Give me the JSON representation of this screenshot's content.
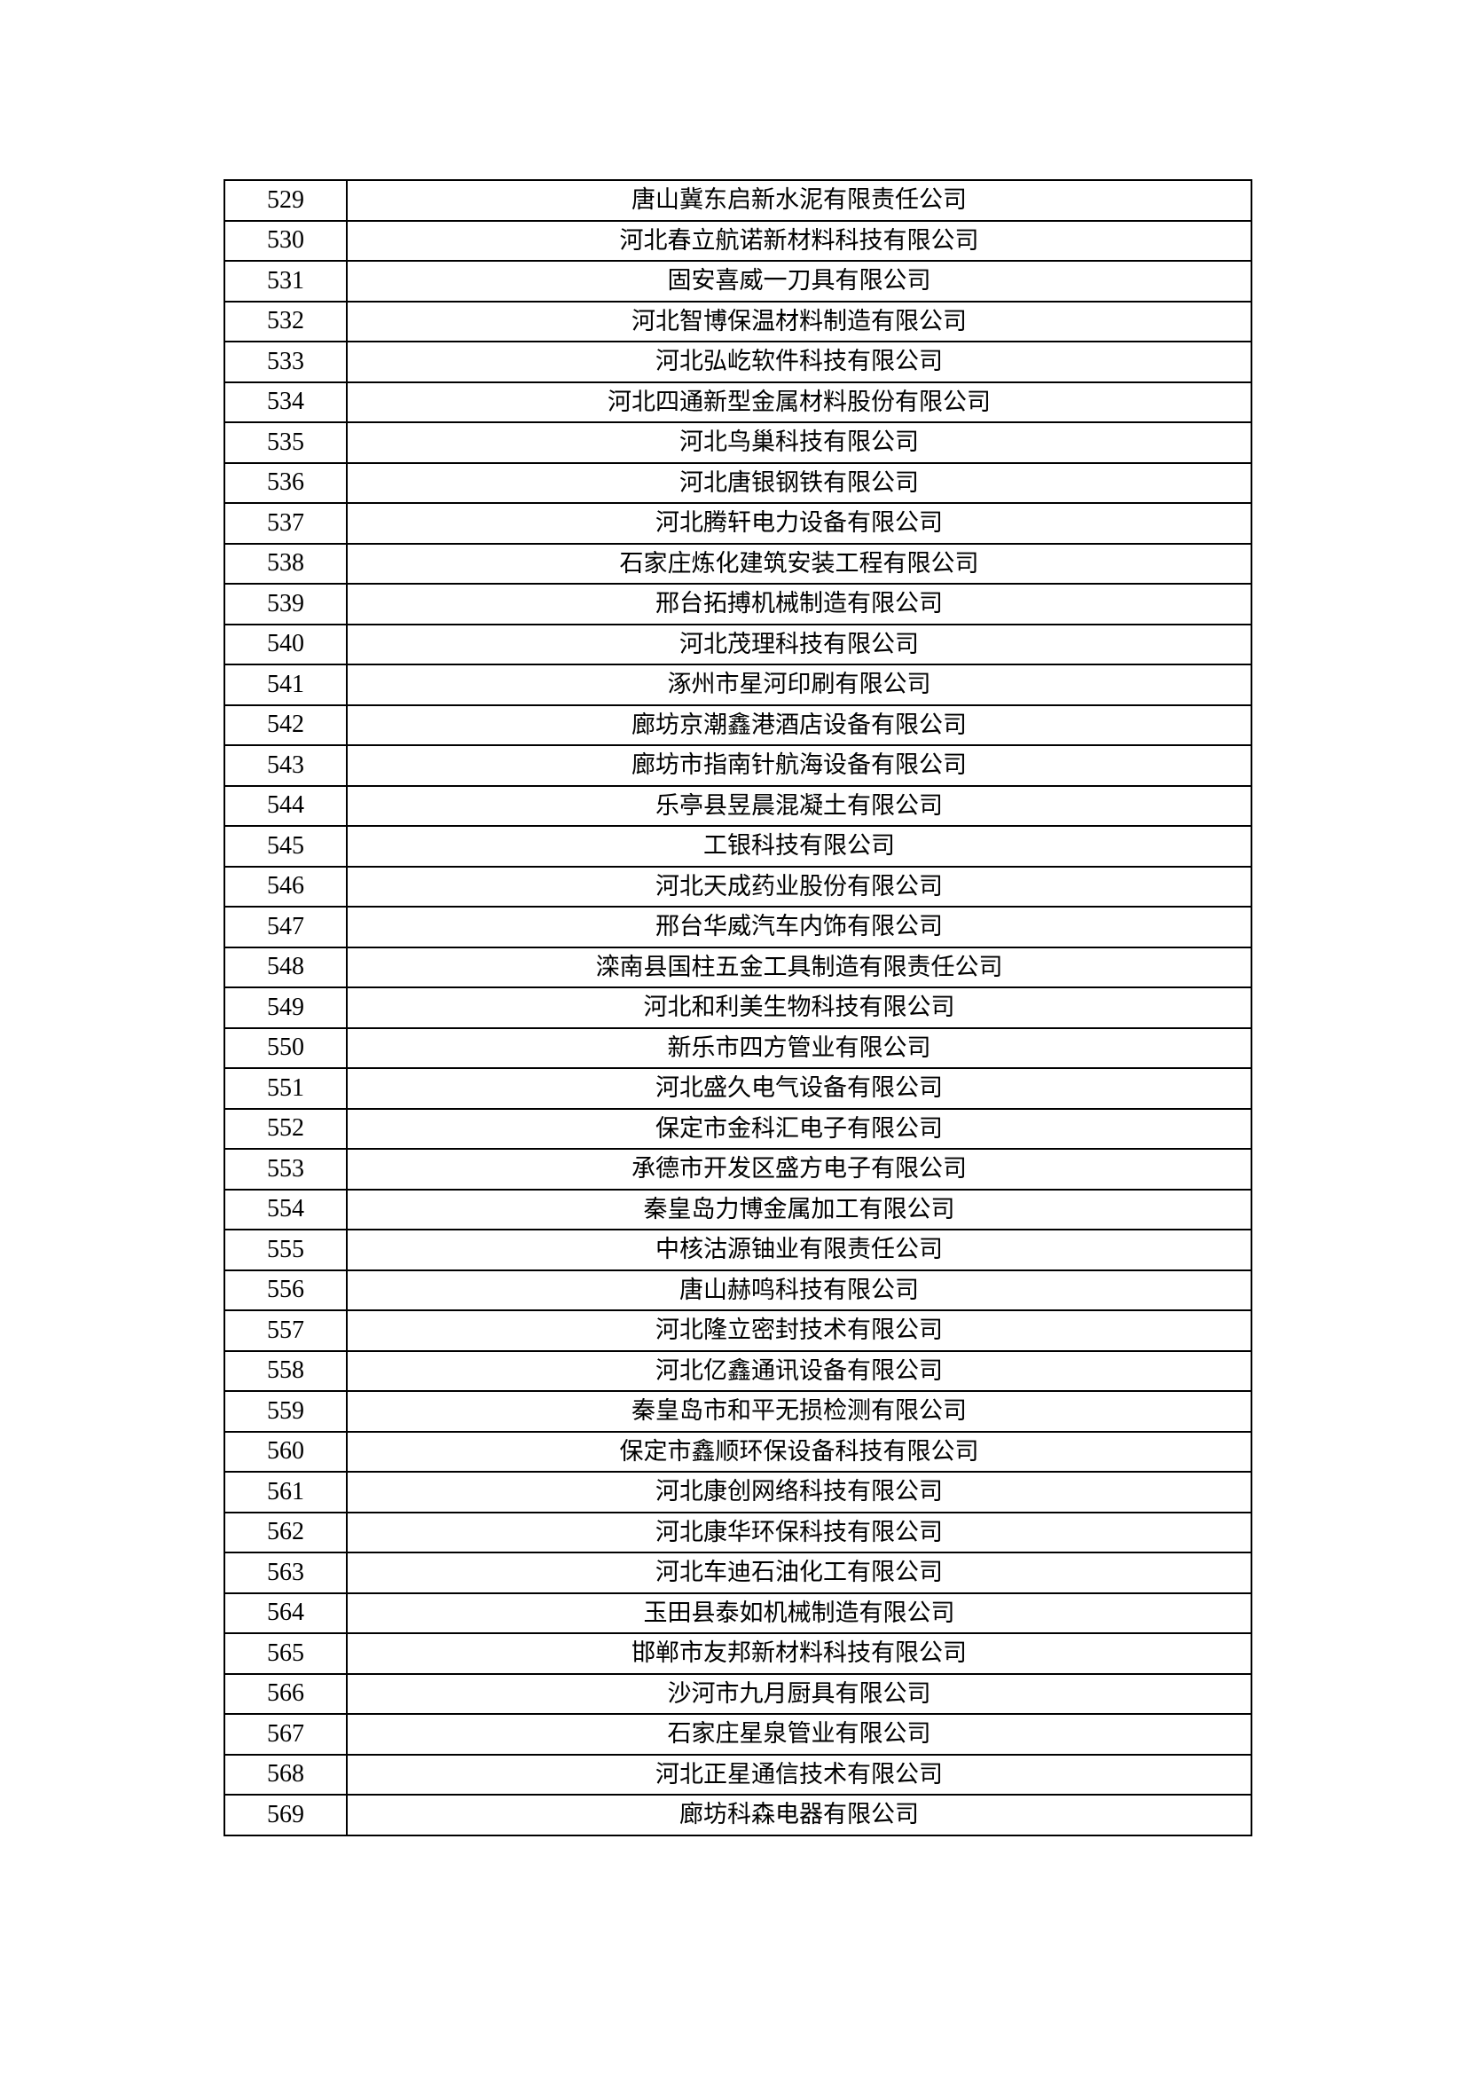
{
  "rows": [
    {
      "no": "529",
      "name": "唐山冀东启新水泥有限责任公司"
    },
    {
      "no": "530",
      "name": "河北春立航诺新材料科技有限公司"
    },
    {
      "no": "531",
      "name": "固安喜威一刀具有限公司"
    },
    {
      "no": "532",
      "name": "河北智博保温材料制造有限公司"
    },
    {
      "no": "533",
      "name": "河北弘屹软件科技有限公司"
    },
    {
      "no": "534",
      "name": "河北四通新型金属材料股份有限公司"
    },
    {
      "no": "535",
      "name": "河北鸟巢科技有限公司"
    },
    {
      "no": "536",
      "name": "河北唐银钢铁有限公司"
    },
    {
      "no": "537",
      "name": "河北腾轩电力设备有限公司"
    },
    {
      "no": "538",
      "name": "石家庄炼化建筑安装工程有限公司"
    },
    {
      "no": "539",
      "name": "邢台拓搏机械制造有限公司"
    },
    {
      "no": "540",
      "name": "河北茂理科技有限公司"
    },
    {
      "no": "541",
      "name": "涿州市星河印刷有限公司"
    },
    {
      "no": "542",
      "name": "廊坊京潮鑫港酒店设备有限公司"
    },
    {
      "no": "543",
      "name": "廊坊市指南针航海设备有限公司"
    },
    {
      "no": "544",
      "name": "乐亭县昱晨混凝土有限公司"
    },
    {
      "no": "545",
      "name": "工银科技有限公司"
    },
    {
      "no": "546",
      "name": "河北天成药业股份有限公司"
    },
    {
      "no": "547",
      "name": "邢台华威汽车内饰有限公司"
    },
    {
      "no": "548",
      "name": "滦南县国柱五金工具制造有限责任公司"
    },
    {
      "no": "549",
      "name": "河北和利美生物科技有限公司"
    },
    {
      "no": "550",
      "name": "新乐市四方管业有限公司"
    },
    {
      "no": "551",
      "name": "河北盛久电气设备有限公司"
    },
    {
      "no": "552",
      "name": "保定市金科汇电子有限公司"
    },
    {
      "no": "553",
      "name": "承德市开发区盛方电子有限公司"
    },
    {
      "no": "554",
      "name": "秦皇岛力博金属加工有限公司"
    },
    {
      "no": "555",
      "name": "中核沽源铀业有限责任公司"
    },
    {
      "no": "556",
      "name": "唐山赫鸣科技有限公司"
    },
    {
      "no": "557",
      "name": "河北隆立密封技术有限公司"
    },
    {
      "no": "558",
      "name": "河北亿鑫通讯设备有限公司"
    },
    {
      "no": "559",
      "name": "秦皇岛市和平无损检测有限公司"
    },
    {
      "no": "560",
      "name": "保定市鑫顺环保设备科技有限公司"
    },
    {
      "no": "561",
      "name": "河北康创网络科技有限公司"
    },
    {
      "no": "562",
      "name": "河北康华环保科技有限公司"
    },
    {
      "no": "563",
      "name": "河北车迪石油化工有限公司"
    },
    {
      "no": "564",
      "name": "玉田县泰如机械制造有限公司"
    },
    {
      "no": "565",
      "name": "邯郸市友邦新材料科技有限公司"
    },
    {
      "no": "566",
      "name": "沙河市九月厨具有限公司"
    },
    {
      "no": "567",
      "name": "石家庄星泉管业有限公司"
    },
    {
      "no": "568",
      "name": "河北正星通信技术有限公司"
    },
    {
      "no": "569",
      "name": "廊坊科森电器有限公司"
    }
  ]
}
